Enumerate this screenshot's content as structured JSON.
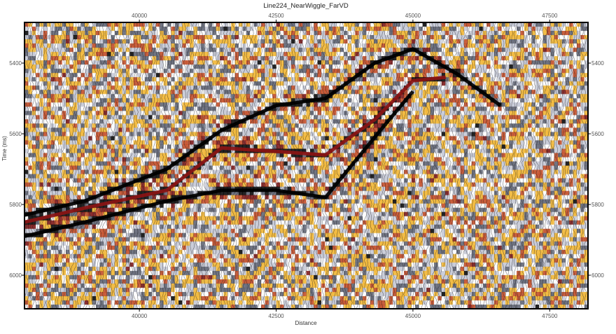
{
  "chart_data": {
    "type": "heatmap",
    "title": "Line224_NearWiggle_FarVD",
    "xlabel": "Distance",
    "ylabel": "Time  (ms)",
    "x_ticks": [
      40000,
      42500,
      45000,
      47500
    ],
    "y_ticks": [
      5400,
      5600,
      5800,
      6000
    ],
    "xlim": [
      37900,
      48200
    ],
    "ylim": [
      5285,
      6095
    ],
    "y_reversed": true,
    "display": "variable-density section with wiggle traces overlaid",
    "colormap": [
      "#7a0f0f",
      "#c2461e",
      "#f3b52c",
      "#ffffff",
      "#c5c9d6",
      "#5c6070",
      "#000000"
    ],
    "horizons": [
      {
        "name": "upper reflector",
        "x": [
          37900,
          39000,
          40500,
          41500,
          42500,
          43400,
          44300,
          45000,
          45800,
          46600
        ],
        "t": [
          5830,
          5790,
          5700,
          5590,
          5520,
          5500,
          5400,
          5360,
          5430,
          5520
        ]
      },
      {
        "name": "middle reflector",
        "x": [
          37900,
          39000,
          40500,
          41500,
          42500,
          43400,
          44300,
          45000,
          45600
        ],
        "t": [
          5850,
          5810,
          5760,
          5640,
          5650,
          5660,
          5560,
          5450,
          5440
        ]
      },
      {
        "name": "lower reflector",
        "x": [
          37900,
          39000,
          40500,
          41500,
          42500,
          43400,
          44300,
          45000
        ],
        "t": [
          5890,
          5850,
          5790,
          5760,
          5760,
          5780,
          5610,
          5480
        ]
      }
    ]
  }
}
